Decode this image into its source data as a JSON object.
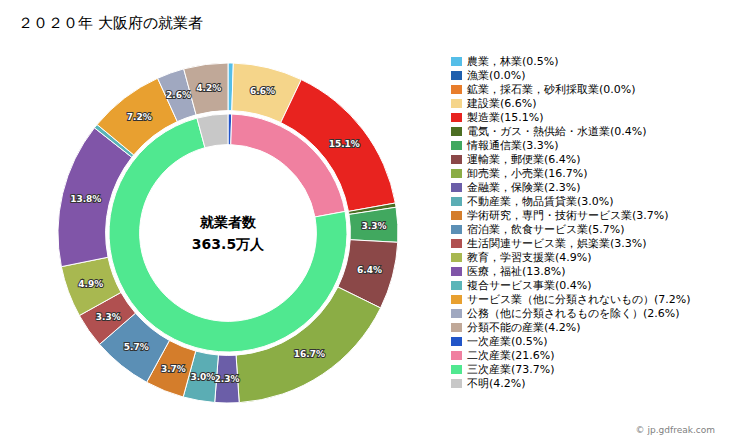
{
  "chart_data": {
    "type": "pie",
    "title": "２０２０年 大阪府の就業者",
    "center_labels": [
      "就業者数",
      "363.5万人"
    ],
    "annotations": [
      "© jp.gdfreak.com"
    ],
    "legend": "right",
    "rings": [
      {
        "categories": [
          "農業，林業(0.5%)",
          "漁業(0.0%)",
          "鉱業，採石業，砂利採取業(0.0%)",
          "建設業(6.6%)",
          "製造業(15.1%)",
          "電気・ガス・熱供給・水道業(0.4%)",
          "情報通信業(3.3%)",
          "運輸業，郵便業(6.4%)",
          "卸売業，小売業(16.7%)",
          "金融業，保険業(2.3%)",
          "不動産業，物品賃貸業(3.0%)",
          "学術研究，専門・技術サービス業(3.7%)",
          "宿泊業，飲食サービス業(5.7%)",
          "生活関連サービス業，娯楽業(3.3%)",
          "教育，学習支援業(4.9%)",
          "医療，福祉(13.8%)",
          "複合サービス事業(0.4%)",
          "サービス業（他に分類されないもの）(7.2%)",
          "公務（他に分類されるものを除く）(2.6%)",
          "分類不能の産業(4.2%)"
        ],
        "values": [
          0.5,
          0.0,
          0.0,
          6.6,
          15.1,
          0.4,
          3.3,
          6.4,
          16.7,
          2.3,
          3.0,
          3.7,
          5.7,
          3.3,
          4.9,
          13.8,
          0.4,
          7.2,
          2.6,
          4.2
        ],
        "value_labels": [
          null,
          null,
          null,
          "6.6%",
          "15.1%",
          null,
          "3.3%",
          "6.4%",
          "16.7%",
          "2.3%",
          "3.0%",
          "3.7%",
          "5.7%",
          "3.3%",
          "4.9%",
          "13.8%",
          null,
          "7.2%",
          "2.6%",
          "4.2%"
        ],
        "colors": [
          "#55BEE8",
          "#1F5FAD",
          "#E87D2B",
          "#F5D58A",
          "#E8231F",
          "#4C6E23",
          "#41A85F",
          "#8B4848",
          "#8BAD45",
          "#6B5EA8",
          "#5BADB4",
          "#D47D2B",
          "#5B8FB5",
          "#B05050",
          "#A8B850",
          "#8055A8",
          "#5BB5B8",
          "#E8A030",
          "#A0A8C0",
          "#C0A898"
        ]
      },
      {
        "categories": [
          "一次産業(0.5%)",
          "二次産業(21.6%)",
          "三次産業(73.7%)",
          "不明(4.2%)"
        ],
        "values": [
          0.5,
          21.6,
          73.7,
          4.2
        ],
        "colors": [
          "#2255C8",
          "#F080A0",
          "#50E890",
          "#C8C8C8"
        ]
      }
    ]
  }
}
